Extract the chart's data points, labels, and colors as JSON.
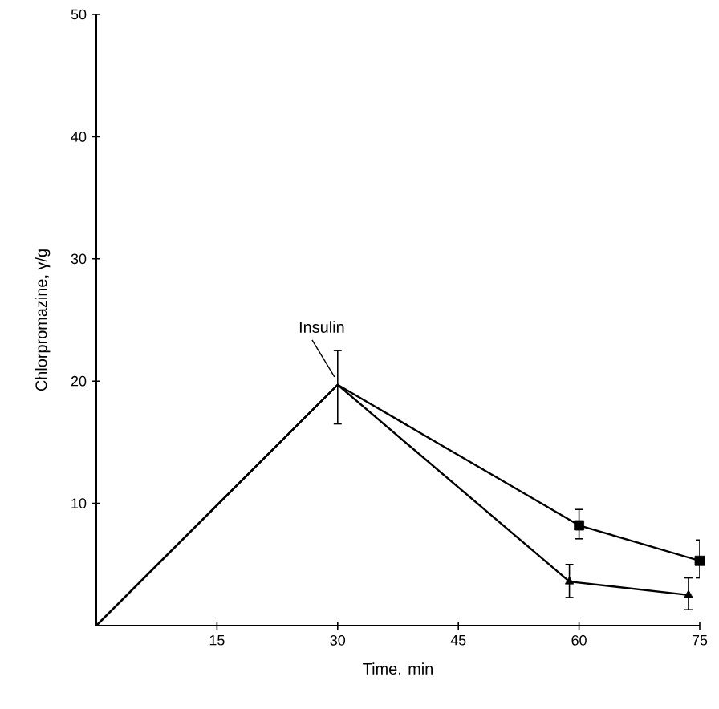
{
  "chart_data": {
    "type": "line",
    "xlabel": "Time.   min",
    "ylabel": "Chlorpromazine,   γ/g",
    "xlim": [
      0,
      75
    ],
    "ylim": [
      0,
      50
    ],
    "xticks": [
      15,
      30,
      45,
      60,
      75
    ],
    "yticks": [
      10,
      20,
      30,
      40,
      50
    ],
    "series": [
      {
        "marker": "none",
        "color": "#000000",
        "x": [
          0,
          30,
          60,
          75
        ],
        "values": [
          0,
          19.7,
          8.2,
          5.3
        ],
        "errors": [
          null,
          [
            16.5,
            22.5
          ],
          null,
          null
        ]
      },
      {
        "marker": "none",
        "color": "#000000",
        "x": [
          0,
          30,
          58.8,
          73.6
        ],
        "values": [
          0,
          19.7,
          3.6,
          2.5
        ]
      },
      {
        "type": "scatter",
        "marker": "square",
        "color": "#000000",
        "x": [
          60,
          75
        ],
        "values": [
          8.2,
          5.3
        ],
        "errors": [
          [
            7.1,
            9.5
          ],
          [
            3.9,
            7.0
          ]
        ]
      },
      {
        "type": "scatter",
        "marker": "triangle",
        "color": "#000000",
        "x": [
          58.8,
          73.6
        ],
        "values": [
          3.6,
          2.5
        ],
        "errors": [
          [
            2.3,
            5.0
          ],
          [
            1.3,
            3.9
          ]
        ]
      }
    ],
    "annotations": [
      {
        "text": "Insulin",
        "x": 30,
        "y": 19.7
      }
    ]
  }
}
